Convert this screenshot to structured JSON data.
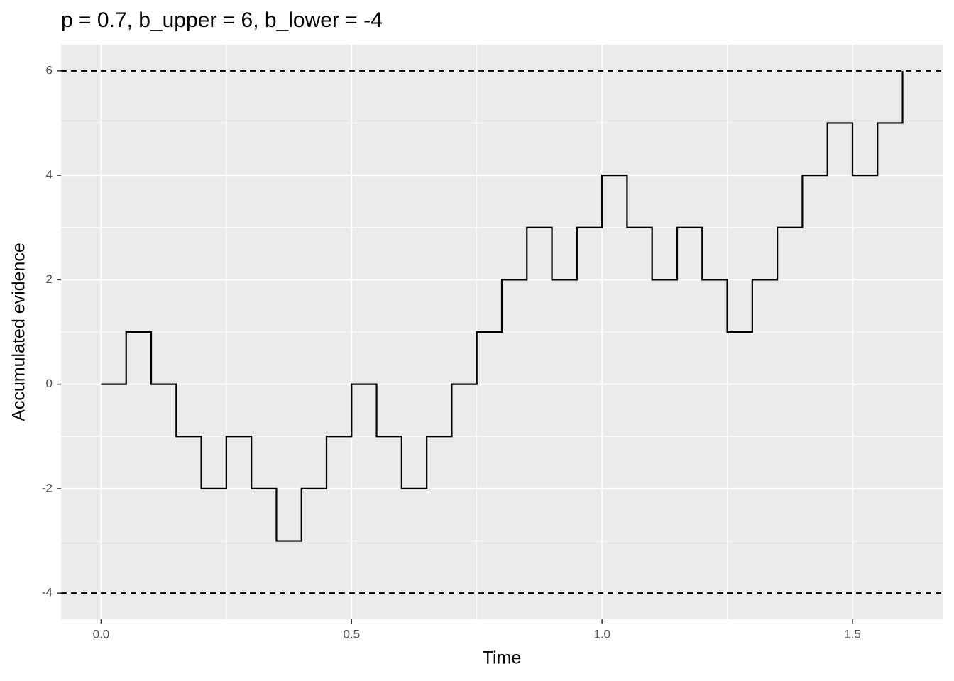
{
  "chart_data": {
    "type": "step-line",
    "title": "p = 0.7, b_upper = 6, b_lower = -4",
    "x_label": "Time",
    "y_label": "Accumulated evidence",
    "series": [
      {
        "color": "#000000",
        "x": [
          0,
          0.05,
          0.1,
          0.15,
          0.2,
          0.25,
          0.3,
          0.35,
          0.4,
          0.45,
          0.5,
          0.55,
          0.6,
          0.65,
          0.7,
          0.75,
          0.8,
          0.85,
          0.9,
          0.95,
          1.0,
          1.05,
          1.1,
          1.15,
          1.2,
          1.25,
          1.3,
          1.35,
          1.4,
          1.45,
          1.5,
          1.55,
          1.6
        ],
        "values": [
          0,
          1,
          0,
          -1,
          -2,
          -1,
          -2,
          -3,
          -2,
          -1,
          0,
          -1,
          -2,
          -1,
          0,
          1,
          2,
          3,
          2,
          3,
          4,
          3,
          2,
          3,
          2,
          1,
          2,
          3,
          4,
          5,
          4,
          5,
          6
        ]
      }
    ],
    "hlines": [
      6,
      -4
    ],
    "hline_color": "#000000",
    "hline_dash": true,
    "xlim": [
      -0.08,
      1.68
    ],
    "ylim": [
      -4.5,
      6.5
    ],
    "xticks": [
      {
        "value": 0,
        "label": "0.0"
      },
      0.5,
      {
        "value": 1,
        "label": "1.0"
      },
      1.5
    ],
    "yticks": [
      -4,
      -2,
      0,
      2,
      4,
      6
    ],
    "grid": true,
    "panel_color": "#ebebeb"
  }
}
